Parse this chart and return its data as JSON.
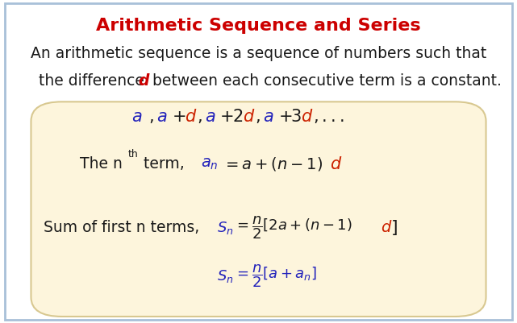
{
  "title": "Arithmetic Sequence and Series",
  "title_color": "#cc0000",
  "title_fontsize": 16,
  "bg_color": "#ffffff",
  "border_color": "#a8c0d8",
  "box_bg_color": "#fdf5dc",
  "box_border_color": "#d8c890",
  "desc_line1": "An arithmetic sequence is a sequence of numbers such that",
  "desc_line2_pre": "the difference ",
  "desc_line2_d": "d",
  "desc_line2_post": " between each consecutive term is a constant.",
  "desc_color": "#1a1a1a",
  "desc_italic_color": "#cc0000",
  "desc_fontsize": 13.5,
  "blue": "#2222bb",
  "red": "#cc2200",
  "black": "#1a1a1a",
  "figsize": [
    6.41,
    4.01
  ],
  "dpi": 100
}
